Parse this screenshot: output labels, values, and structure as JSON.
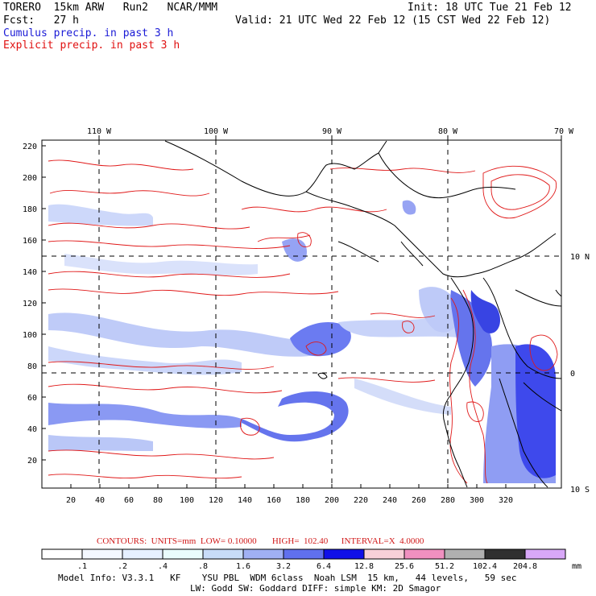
{
  "header": {
    "model": "TORERO  15km ARW   Run2   NCAR/MMM",
    "init": "Init: 18 UTC Tue 21 Feb 12",
    "fcst": "Fcst:   27 h",
    "valid": "Valid: 21 UTC Wed 22 Feb 12 (15 CST Wed 22 Feb 12)",
    "cumulus": "Cumulus precip. in past 3 h",
    "explicit": "Explicit precip. in past 3 h"
  },
  "map": {
    "lon_labels": [
      "110 W",
      "100 W",
      "90 W",
      "80 W",
      "70 W"
    ],
    "lat_labels_right": [
      "10 N",
      "0",
      "10 S"
    ],
    "y_ticks": [
      "220",
      "200",
      "180",
      "160",
      "140",
      "120",
      "100",
      "80",
      "60",
      "40",
      "20"
    ],
    "x_ticks": [
      "20",
      "40",
      "60",
      "80",
      "100",
      "120",
      "140",
      "160",
      "180",
      "200",
      "220",
      "240",
      "260",
      "280",
      "300",
      "320"
    ],
    "colors": {
      "land": "#000000",
      "grid": "#000000",
      "explicit": "#e01818",
      "cumulus": "#4a5cf0"
    }
  },
  "contours": {
    "label": "CONTOURS:  UNITS=mm  LOW= 0.10000       HIGH=  102.40      INTERVAL=X  4.0000"
  },
  "colorbar": {
    "labels": [
      ".1",
      ".2",
      ".4",
      ".8",
      "1.6",
      "3.2",
      "6.4",
      "12.8",
      "25.6",
      "51.2",
      "102.4",
      "204.8"
    ],
    "unit": "mm",
    "colors": [
      "#ffffff",
      "#f4f8ff",
      "#e6f0ff",
      "#eafcfc",
      "#c8dcf8",
      "#a0b0f4",
      "#6070ee",
      "#1010e8",
      "#f8d0d8",
      "#f090c0",
      "#b0b0b0",
      "#303030",
      "#d8a8f8"
    ]
  },
  "footer": {
    "line1": "Model Info: V3.3.1   KF    YSU PBL  WDM 6class  Noah LSM  15 km,   44 levels,   59 sec",
    "line2": "LW: Godd SW: Goddard DIFF: simple KM: 2D Smagor"
  }
}
